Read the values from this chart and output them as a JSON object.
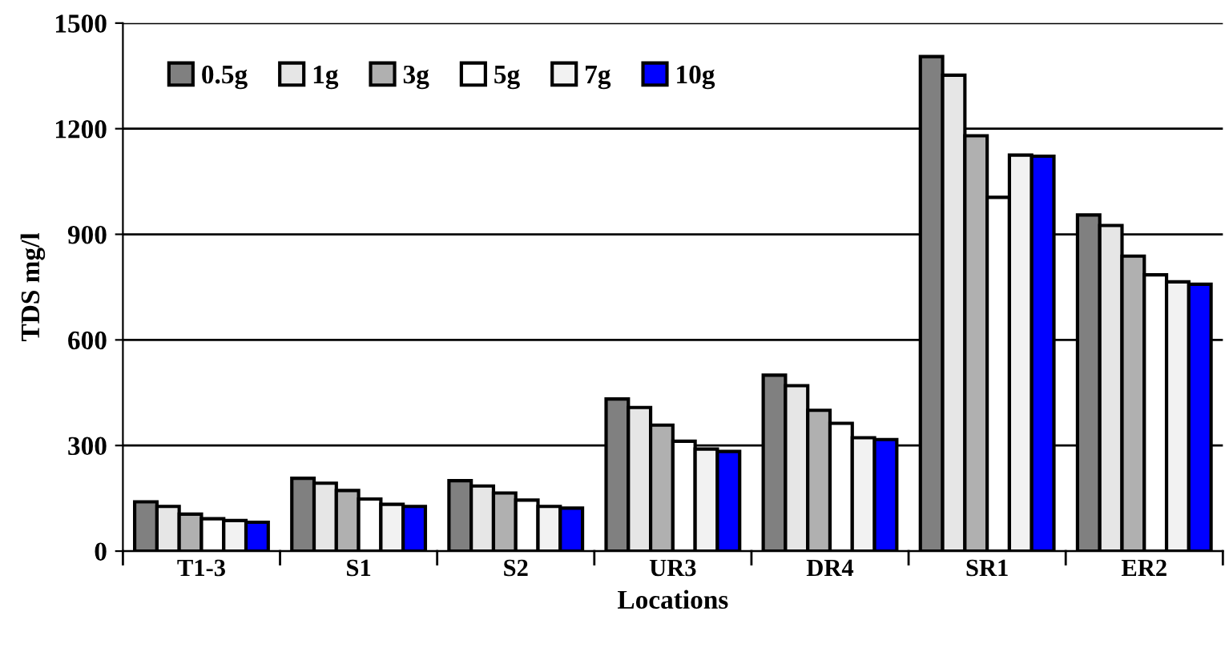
{
  "chart_data": {
    "type": "bar",
    "xlabel": "Locations",
    "ylabel": "TDS mg/l",
    "categories": [
      "T1-3",
      "S1",
      "S2",
      "UR3",
      "DR4",
      "SR1",
      "ER2"
    ],
    "series": [
      {
        "name": "0.5g",
        "color": "#808080",
        "values": [
          140,
          207,
          200,
          432,
          500,
          1405,
          955
        ]
      },
      {
        "name": "1g",
        "color": "#e6e6e6",
        "values": [
          127,
          193,
          185,
          408,
          470,
          1352,
          925
        ]
      },
      {
        "name": "3g",
        "color": "#b0b0b0",
        "values": [
          105,
          172,
          165,
          358,
          400,
          1180,
          838
        ]
      },
      {
        "name": "5g",
        "color": "#ffffff",
        "values": [
          92,
          148,
          145,
          312,
          363,
          1005,
          785
        ]
      },
      {
        "name": "7g",
        "color": "#f2f2f2",
        "values": [
          87,
          133,
          127,
          290,
          322,
          1125,
          765
        ]
      },
      {
        "name": "10g",
        "color": "#0000ff",
        "values": [
          82,
          127,
          122,
          283,
          317,
          1122,
          758
        ]
      }
    ],
    "ylim": [
      0,
      1500
    ],
    "yticks": [
      0,
      300,
      600,
      900,
      1200,
      1500
    ],
    "grid": "y",
    "legend": "top left"
  }
}
